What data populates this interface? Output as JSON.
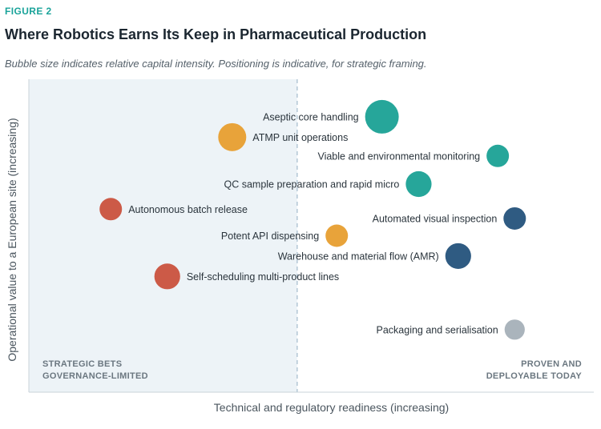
{
  "figure_label": "FIGURE 2",
  "title": "Where Robotics Earns Its Keep in Pharmaceutical Production",
  "subtitle": "Bubble size indicates relative capital intensity. Positioning is indicative, for strategic framing.",
  "chart_data": {
    "type": "scatter",
    "xlabel": "Technical and regulatory readiness (increasing)",
    "ylabel": "Operational value to a European site (increasing)",
    "xlim": [
      0,
      100
    ],
    "ylim": [
      0,
      100
    ],
    "divider_x": 47.5,
    "grid": false,
    "quadrant_labels": {
      "left_line1": "STRATEGIC BETS",
      "left_line2": "GOVERNANCE-LIMITED",
      "right_line1": "PROVEN AND",
      "right_line2": "DEPLOYABLE TODAY"
    },
    "colors": {
      "teal": "#26a69a",
      "orange": "#e8a33a",
      "red": "#cc5a47",
      "navy": "#2f5b82",
      "grey": "#aab4bc",
      "left_zone": "#edf3f7"
    },
    "points": [
      {
        "label": "Aseptic core handling",
        "x": 62.5,
        "y": 88,
        "size": 3,
        "color": "teal",
        "label_side": "left"
      },
      {
        "label": "ATMP unit operations",
        "x": 36,
        "y": 81.5,
        "size": 2.5,
        "color": "orange",
        "label_side": "right"
      },
      {
        "label": "Viable and environmental monitoring",
        "x": 83,
        "y": 75.5,
        "size": 2,
        "color": "teal",
        "label_side": "left"
      },
      {
        "label": "QC sample preparation and rapid micro",
        "x": 69,
        "y": 66.5,
        "size": 2.3,
        "color": "teal",
        "label_side": "left"
      },
      {
        "label": "Autonomous batch release",
        "x": 14.5,
        "y": 58.5,
        "size": 2,
        "color": "red",
        "label_side": "right"
      },
      {
        "label": "Automated visual inspection",
        "x": 86,
        "y": 55.5,
        "size": 2,
        "color": "navy",
        "label_side": "left"
      },
      {
        "label": "Potent API dispensing",
        "x": 54.5,
        "y": 50,
        "size": 2,
        "color": "orange",
        "label_side": "left"
      },
      {
        "label": "Warehouse and material flow (AMR)",
        "x": 76,
        "y": 43.5,
        "size": 2.3,
        "color": "navy",
        "label_side": "left"
      },
      {
        "label": "Self-scheduling multi-product lines",
        "x": 24.5,
        "y": 37,
        "size": 2.3,
        "color": "red",
        "label_side": "right"
      },
      {
        "label": "Packaging and serialisation",
        "x": 86,
        "y": 20,
        "size": 1.8,
        "color": "grey",
        "label_side": "left"
      }
    ]
  }
}
